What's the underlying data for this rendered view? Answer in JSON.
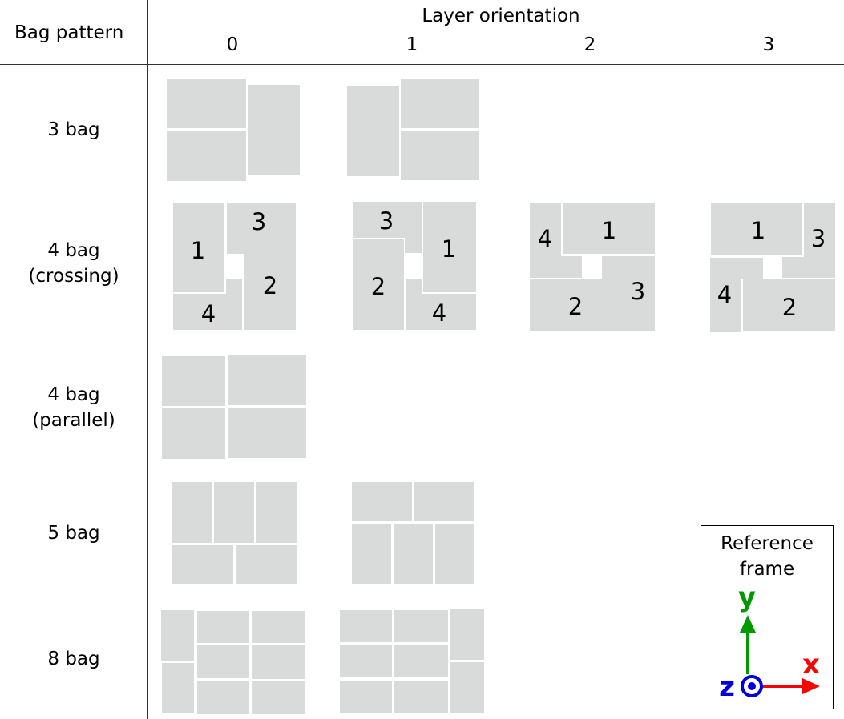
{
  "header": {
    "row_header": "Bag pattern",
    "col_header": "Layer orientation",
    "orientations": [
      "0",
      "1",
      "2",
      "3"
    ]
  },
  "rows": [
    {
      "label_line1": "3 bag",
      "label_line2": ""
    },
    {
      "label_line1": "4 bag",
      "label_line2": "(crossing)"
    },
    {
      "label_line1": "4 bag",
      "label_line2": "(parallel)"
    },
    {
      "label_line1": "5 bag",
      "label_line2": ""
    },
    {
      "label_line1": "8 bag",
      "label_line2": ""
    }
  ],
  "crossing_labels": [
    "1",
    "2",
    "3",
    "4"
  ],
  "reference_frame": {
    "title_line1": "Reference",
    "title_line2": "frame",
    "x_label": "x",
    "y_label": "y",
    "z_label": "z",
    "x_color": "#ff0000",
    "y_color": "#009900",
    "z_color": "#0000dd"
  },
  "bag_color": "#d9dbda"
}
